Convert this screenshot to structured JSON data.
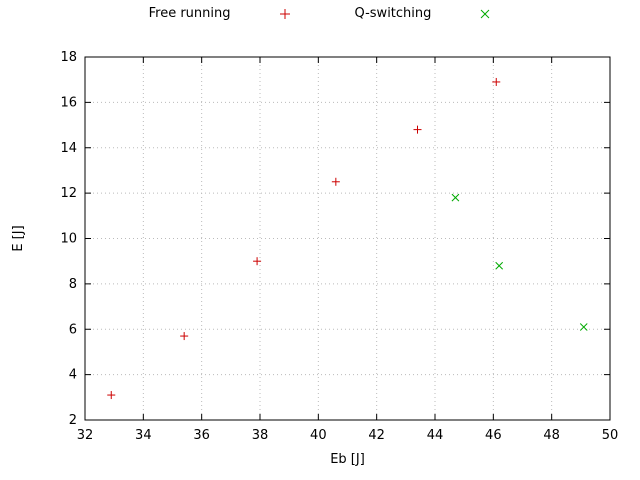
{
  "legend": {
    "series1_label": "Free running",
    "series2_label": "Q-switching"
  },
  "axes": {
    "xlabel": "Eb [J]",
    "ylabel": "E [J]"
  },
  "colors": {
    "free_running": "#cc0000",
    "q_switching": "#00aa00",
    "grid": "#bbbbbb",
    "border": "#000000"
  },
  "chart_data": {
    "type": "scatter",
    "title": "",
    "xlabel": "Eb [J]",
    "ylabel": "E [J]",
    "xlim": [
      32,
      50
    ],
    "ylim": [
      2,
      18
    ],
    "xticks": [
      32,
      34,
      36,
      38,
      40,
      42,
      44,
      46,
      48,
      50
    ],
    "yticks": [
      2,
      4,
      6,
      8,
      10,
      12,
      14,
      16,
      18
    ],
    "grid": true,
    "legend_position": "top-center",
    "series": [
      {
        "name": "Free running",
        "marker": "plus",
        "color": "#cc0000",
        "points": [
          [
            32.9,
            3.1
          ],
          [
            35.4,
            5.7
          ],
          [
            37.9,
            9.0
          ],
          [
            40.6,
            12.5
          ],
          [
            43.4,
            14.8
          ],
          [
            46.1,
            16.9
          ]
        ]
      },
      {
        "name": "Q-switching",
        "marker": "cross",
        "color": "#00aa00",
        "points": [
          [
            44.7,
            11.8
          ],
          [
            46.2,
            8.8
          ],
          [
            49.1,
            6.1
          ]
        ]
      }
    ]
  }
}
